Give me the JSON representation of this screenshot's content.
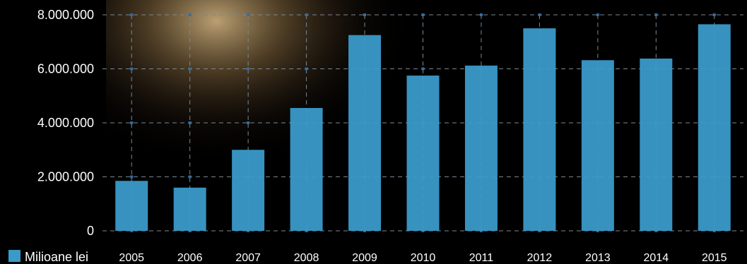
{
  "chart_data": {
    "type": "bar",
    "categories": [
      "2005",
      "2006",
      "2007",
      "2008",
      "2009",
      "2010",
      "2011",
      "2012",
      "2013",
      "2014",
      "2015"
    ],
    "series": [
      {
        "name": "Milioane lei",
        "values": [
          1850000,
          1600000,
          3000000,
          4550000,
          7250000,
          5750000,
          6120000,
          7500000,
          6320000,
          6380000,
          7650000
        ]
      }
    ],
    "ytick_labels": [
      "0",
      "2.000.000",
      "4.000.000",
      "6.000.000",
      "8.000.000"
    ],
    "ytick_values": [
      0,
      2000000,
      4000000,
      6000000,
      8000000
    ],
    "ylim": [
      0,
      8000000
    ],
    "grid": true,
    "legend_position": "bottom-left",
    "colors": {
      "bar": "#3a9ac9",
      "grid": "#7a8791",
      "text": "#ffffff",
      "background": "#000000"
    }
  }
}
